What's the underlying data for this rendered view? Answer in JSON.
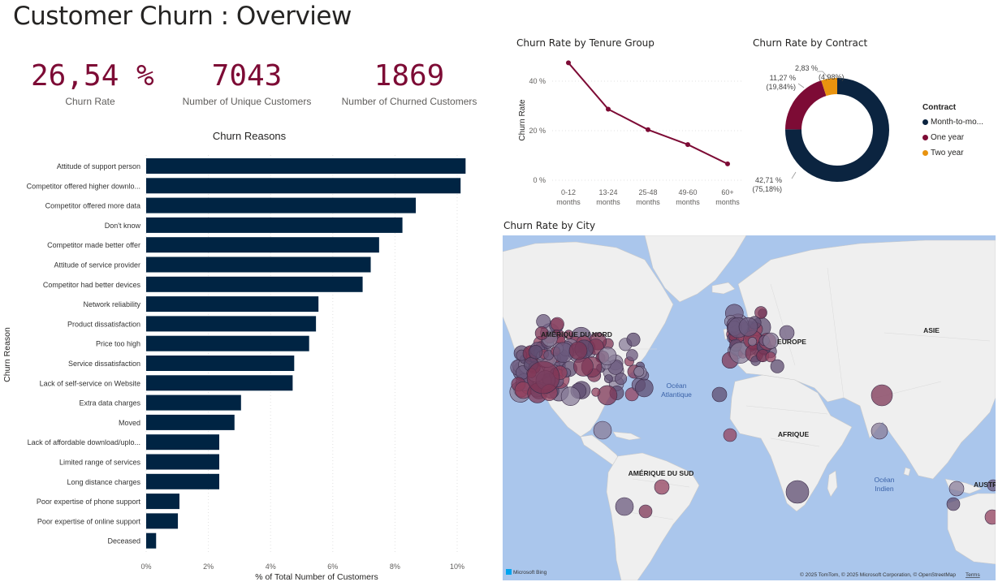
{
  "page": {
    "title": "Customer Churn : Overview"
  },
  "kpis": [
    {
      "value": "26,54 %",
      "label": "Churn Rate"
    },
    {
      "value": "7043",
      "label": "Number of Unique Customers"
    },
    {
      "value": "1869",
      "label": "Number of Churned Customers"
    }
  ],
  "colors": {
    "accent": "#7d0b35",
    "bar": "#002443",
    "month": "#0b2440",
    "year": "#7d0b35",
    "two_year": "#e8930f",
    "map_water": "#aac6ec",
    "map_land": "#efefef"
  },
  "chart_data": [
    {
      "id": "reasons",
      "type": "bar",
      "orientation": "horizontal",
      "title": "Churn Reasons",
      "xlabel": "% of Total Number of Customers",
      "ylabel": "Churn Reason",
      "xlim": [
        0,
        11
      ],
      "xticks": [
        "0%",
        "2%",
        "4%",
        "6%",
        "8%",
        "10%"
      ],
      "categories": [
        "Attitude of support person",
        "Competitor offered higher downlo...",
        "Competitor offered more data",
        "Don't know",
        "Competitor made better offer",
        "Attitude of service provider",
        "Competitor had better devices",
        "Network reliability",
        "Product dissatisfaction",
        "Price too high",
        "Service dissatisfaction",
        "Lack of self-service on Website",
        "Extra data charges",
        "Moved",
        "Lack of affordable download/uplo...",
        "Limited range of services",
        "Long distance charges",
        "Poor expertise of phone support",
        "Poor expertise of online support",
        "Deceased"
      ],
      "values": [
        10.27,
        10.11,
        8.67,
        8.24,
        7.49,
        7.22,
        6.96,
        5.54,
        5.46,
        5.24,
        4.76,
        4.71,
        3.05,
        2.84,
        2.35,
        2.35,
        2.35,
        1.07,
        1.02,
        0.32
      ]
    },
    {
      "id": "tenure",
      "type": "line",
      "title": "Churn Rate by Tenure Group",
      "ylabel": "Churn Rate",
      "categories": [
        "0-12 months",
        "13-24 months",
        "25-48 months",
        "49-60 months",
        "60+ months"
      ],
      "cat_lines": [
        [
          "0-12",
          "months"
        ],
        [
          "13-24",
          "months"
        ],
        [
          "25-48",
          "months"
        ],
        [
          "49-60",
          "months"
        ],
        [
          "60+",
          "months"
        ]
      ],
      "values": [
        47.4,
        28.7,
        20.4,
        14.4,
        6.6
      ],
      "ylim": [
        0,
        50
      ],
      "yticks": [
        "0 %",
        "20 %",
        "40 %"
      ]
    },
    {
      "id": "contract",
      "type": "pie",
      "title": "Churn Rate by Contract",
      "legend_title": "Contract",
      "legend_position": "right",
      "series": [
        {
          "name": "Month-to-mo...",
          "value": 42.71,
          "share": 75.18
        },
        {
          "name": "One year",
          "value": 11.27,
          "share": 19.84
        },
        {
          "name": "Two year",
          "value": 2.83,
          "share": 4.98
        }
      ],
      "labels": [
        {
          "value": "42,71 %",
          "share": "(75,18%)"
        },
        {
          "value": "11,27 %",
          "share": "(19,84%)"
        },
        {
          "value": "2,83 %",
          "share": "(4,98%)"
        }
      ]
    }
  ],
  "map": {
    "title": "Churn Rate by City",
    "labels": {
      "north_america": "AMÉRIQUE DU NORD",
      "south_america": "AMÉRIQUE DU SUD",
      "europe": "EUROPE",
      "africa": "AFRIQUE",
      "asia": "ASIE",
      "australia": "AUSTR",
      "atlantic_1": "Océan",
      "atlantic_2": "Atlantique",
      "indian_1": "Océan",
      "indian_2": "Indien"
    },
    "logo": "Microsoft Bing",
    "copyright": "© 2025 TomTom, © 2025 Microsoft Corporation, © OpenStreetMap",
    "terms": "Terms",
    "bubble_colors": [
      "#6b5a7e",
      "#7d3555",
      "#8a7d9a",
      "#5d4c70",
      "#93415f"
    ]
  }
}
